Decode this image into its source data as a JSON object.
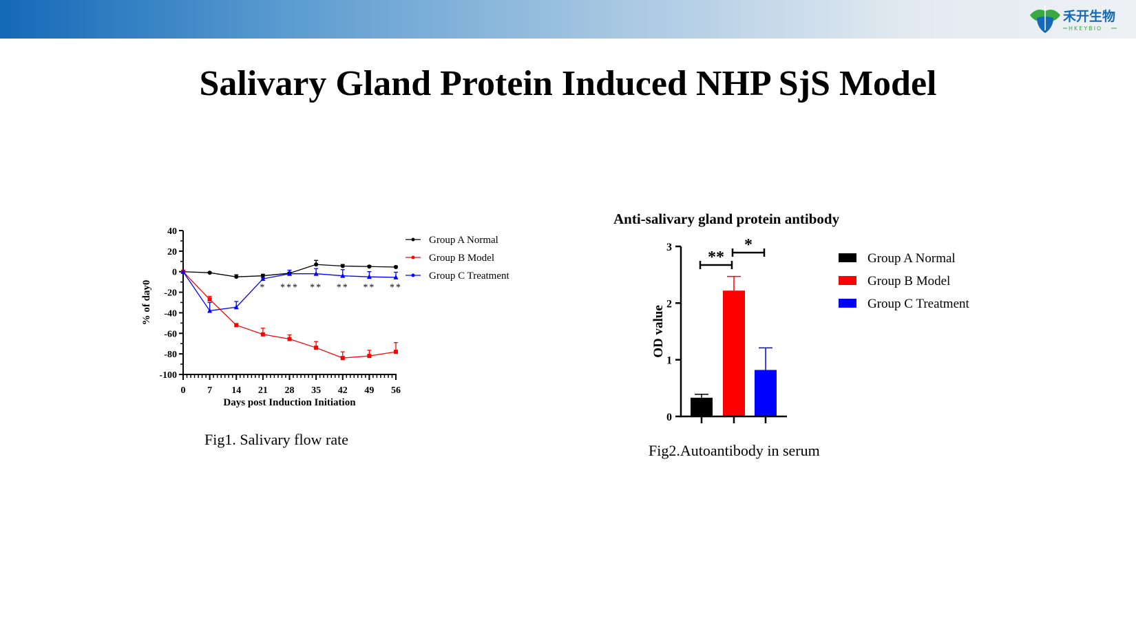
{
  "page_title": "Salivary Gland Protein Induced NHP SjS Model",
  "logo": {
    "text_cn": "禾开生物",
    "text_en": "HKEYBIO",
    "icon": "leaf-logo-icon"
  },
  "header_bar_colors": [
    "#1469b8",
    "#eef1f4"
  ],
  "chart_data": [
    {
      "type": "line",
      "caption": "Fig1. Salivary flow rate",
      "xlabel": "Days post Induction Initiation",
      "ylabel": "% of day0",
      "xlim": [
        0,
        56
      ],
      "ylim": [
        -100,
        40
      ],
      "xticks": [
        0,
        7,
        14,
        21,
        28,
        35,
        42,
        49,
        56
      ],
      "yticks": [
        40,
        20,
        0,
        -20,
        -40,
        -60,
        -80,
        -100
      ],
      "x": [
        0,
        7,
        14,
        21,
        28,
        35,
        42,
        49,
        56
      ],
      "legend_position": "right",
      "series": [
        {
          "name": "Group A Normal",
          "color": "#000000",
          "marker": "circle",
          "values": [
            0,
            -1,
            -5,
            -4,
            -1.5,
            7,
            5.5,
            5,
            4.5
          ],
          "errors": [
            0,
            0.5,
            2,
            1.5,
            1,
            4,
            1.5,
            1,
            1
          ]
        },
        {
          "name": "Group B Model",
          "color": "#ff0000",
          "marker": "square",
          "values": [
            0,
            -27,
            -52,
            -61,
            -65.5,
            -74,
            -84,
            -82,
            -78
          ],
          "errors": [
            0,
            3,
            1.5,
            6,
            4,
            6,
            6,
            5.5,
            9
          ]
        },
        {
          "name": "Group C Treatment",
          "color": "#0000ff",
          "marker": "triangle",
          "values": [
            0,
            -38,
            -34.5,
            -7,
            -2,
            -2,
            -4,
            -5,
            -5.5
          ],
          "errors": [
            0,
            8,
            5.5,
            1,
            3.5,
            5,
            6,
            5,
            5
          ]
        }
      ],
      "annotations": [
        {
          "x": 21,
          "text": "*"
        },
        {
          "x": 28,
          "text": "***"
        },
        {
          "x": 35,
          "text": "**"
        },
        {
          "x": 42,
          "text": "**"
        },
        {
          "x": 49,
          "text": "**"
        },
        {
          "x": 56,
          "text": "**"
        }
      ]
    },
    {
      "type": "bar",
      "title": "Anti-salivary gland protein antibody",
      "caption": "Fig2.Autoantibody in serum",
      "ylabel": "OD value",
      "ylim": [
        0,
        3
      ],
      "yticks": [
        0,
        1,
        2,
        3
      ],
      "categories": [
        "Group A Normal",
        "Group B Model",
        "Group C Treatment"
      ],
      "values": [
        0.33,
        2.22,
        0.82
      ],
      "errors": [
        0.06,
        0.25,
        0.39
      ],
      "colors": [
        "#000000",
        "#ff0000",
        "#0000ff"
      ],
      "legend_position": "right",
      "significance": [
        {
          "between": [
            0,
            1
          ],
          "text": "**"
        },
        {
          "between": [
            1,
            2
          ],
          "text": "*"
        }
      ]
    }
  ]
}
